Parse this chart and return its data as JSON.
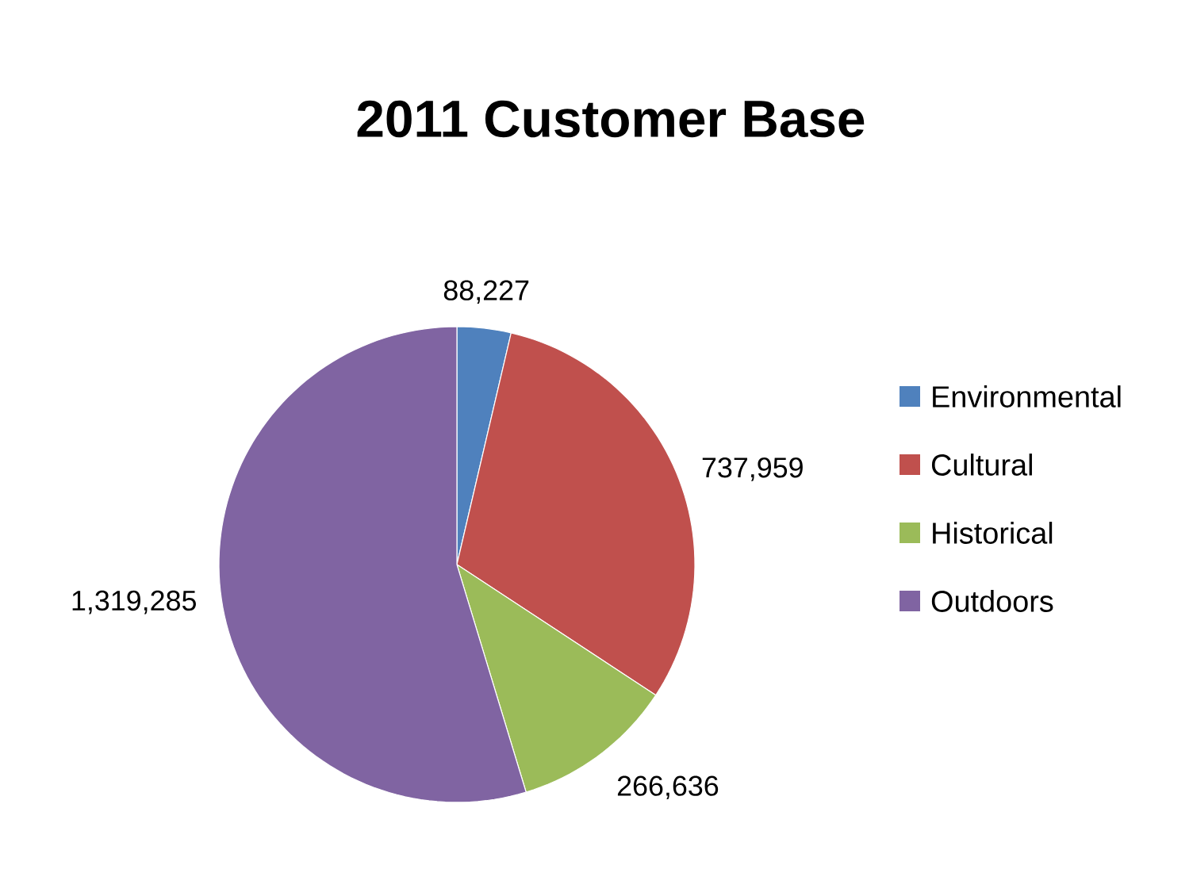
{
  "chart_data": {
    "type": "pie",
    "title": "2011 Customer Base",
    "categories": [
      "Environmental",
      "Cultural",
      "Historical",
      "Outdoors"
    ],
    "values": [
      88227,
      737959,
      266636,
      1319285
    ],
    "colors": [
      "#4f81bd",
      "#c0504d",
      "#9bbb59",
      "#8064a2"
    ],
    "value_labels": [
      "88,227",
      "737,959",
      "266,636",
      "1,319,285"
    ],
    "legend": "right"
  }
}
